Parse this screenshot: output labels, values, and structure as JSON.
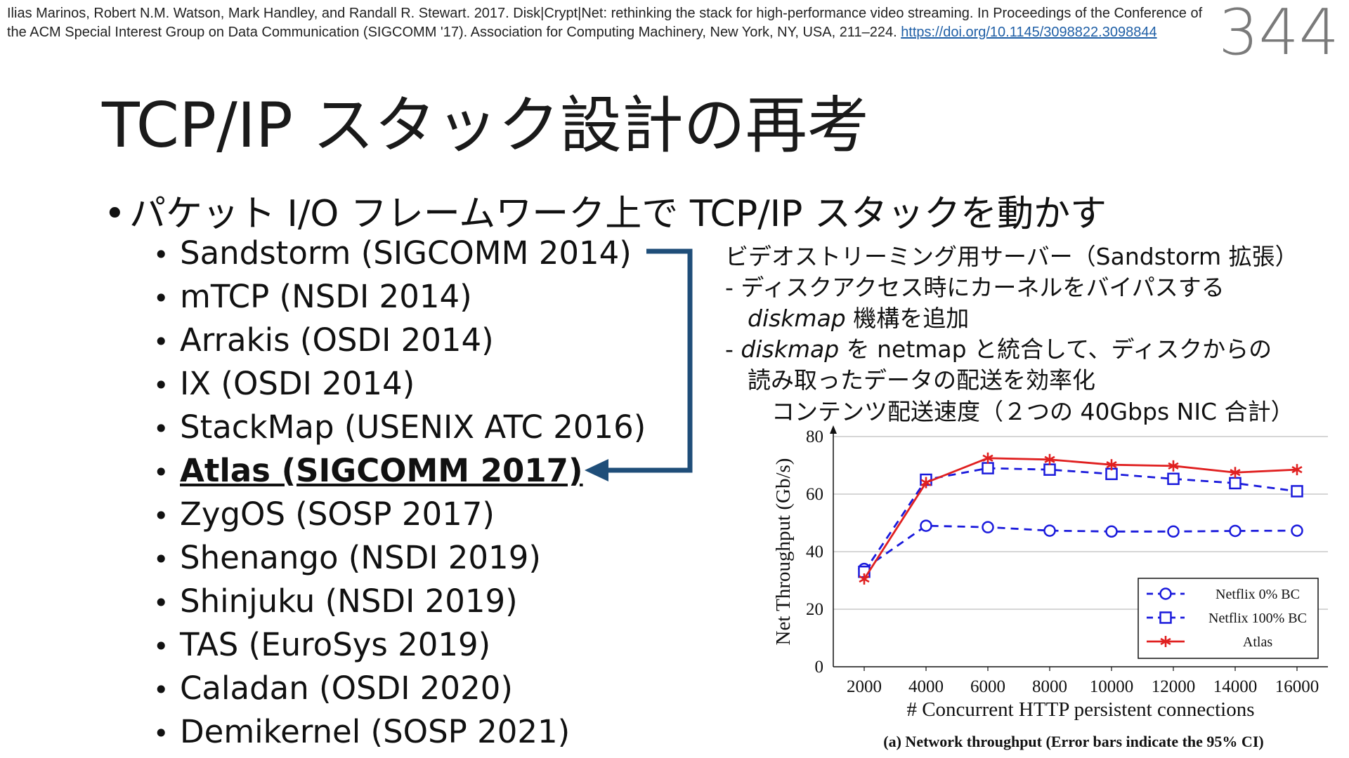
{
  "citation": {
    "text": "Ilias Marinos, Robert N.M. Watson, Mark Handley, and Randall R. Stewart. 2017. Disk|Crypt|Net: rethinking the stack for high-performance video streaming. In Proceedings of the Conference of the ACM Special Interest Group on Data Communication (SIGCOMM '17). Association for Computing Machinery, New York, NY, USA, 211–224. ",
    "link": "https://doi.org/10.1145/3098822.3098844"
  },
  "page_number": "344",
  "title": "TCP/IP スタック設計の再考",
  "main_bullet": "パケット I/O フレームワーク上で TCP/IP スタックを動かす",
  "systems": [
    "Sandstorm (SIGCOMM 2014)",
    "mTCP (NSDI 2014)",
    "Arrakis (OSDI 2014)",
    "IX (OSDI 2014)",
    "StackMap (USENIX ATC 2016)",
    "Atlas (SIGCOMM 2017)",
    "ZygOS (SOSP 2017)",
    "Shenango (NSDI 2019)",
    "Shinjuku (NSDI 2019)",
    "TAS (EuroSys 2019)",
    "Caladan (OSDI 2020)",
    "Demikernel (SOSP 2021)"
  ],
  "highlight_index": 5,
  "description": {
    "line1": "ビデオストリーミング用サーバー（Sandstorm 拡張）",
    "line2": "- ディスクアクセス時にカーネルをバイパスする",
    "line3_em": "diskmap",
    "line3_rest": " 機構を追加",
    "line4_prefix": "- ",
    "line4_em": "diskmap",
    "line4_rest": " を netmap と統合して、ディスクからの",
    "line5": "読み取ったデータの配送を効率化"
  },
  "chart_heading": "コンテンツ配送速度（２つの 40Gbps NIC 合計）",
  "colors": {
    "arrow": "#1f4e79",
    "atlas": "#e02020",
    "netflix": "#1a1adc"
  },
  "chart_data": {
    "type": "line",
    "x": [
      2000,
      4000,
      6000,
      8000,
      10000,
      12000,
      14000,
      16000
    ],
    "series": [
      {
        "name": "Netflix 0% BC",
        "values": [
          34,
          49,
          48.5,
          47.3,
          47,
          47,
          47.2,
          47.3
        ],
        "marker": "circle",
        "style": "dashed",
        "color": "#1a1adc"
      },
      {
        "name": "Netflix 100% BC",
        "values": [
          33,
          65,
          69,
          68.5,
          67,
          65.3,
          63.8,
          61
        ],
        "marker": "square",
        "style": "dashed",
        "color": "#1a1adc"
      },
      {
        "name": "Atlas",
        "values": [
          30.5,
          64,
          72.5,
          72,
          70.2,
          69.8,
          67.5,
          68.5
        ],
        "marker": "star",
        "style": "solid",
        "color": "#e02020"
      }
    ],
    "xlabel": "# Concurrent HTTP persistent connections",
    "ylabel": "Net Throughput (Gb/s)",
    "ylim": [
      0,
      80
    ],
    "yticks": [
      0,
      20,
      40,
      60,
      80
    ],
    "xticks": [
      2000,
      4000,
      6000,
      8000,
      10000,
      12000,
      14000,
      16000
    ],
    "caption": "(a) Network throughput (Error bars indicate the 95% CI)",
    "grid": "horizontal",
    "legend": "bottom-right"
  }
}
